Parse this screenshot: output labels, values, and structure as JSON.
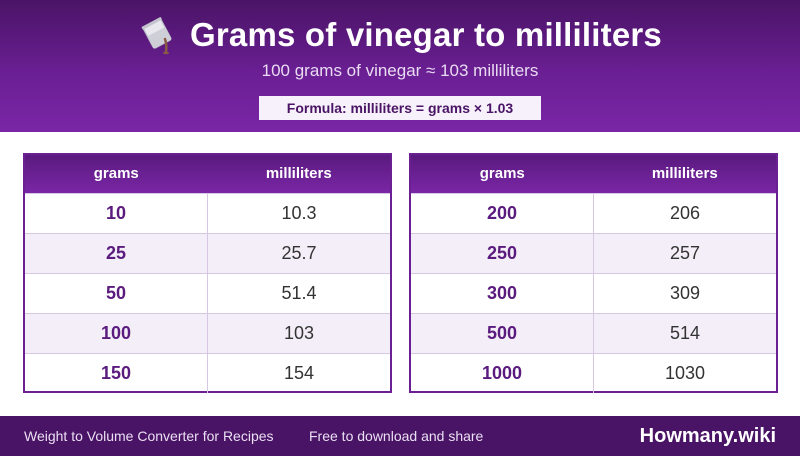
{
  "header": {
    "icon": "pouring-cup-icon",
    "title": "Grams of vinegar to milliliters",
    "subtitle": "100 grams of vinegar ≈ 103 milliliters",
    "formula": "Formula: milliliters = grams × 1.03"
  },
  "tables": [
    {
      "headers": [
        "grams",
        "milliliters"
      ],
      "rows": [
        {
          "grams": "10",
          "ml": "10.3"
        },
        {
          "grams": "25",
          "ml": "25.7"
        },
        {
          "grams": "50",
          "ml": "51.4"
        },
        {
          "grams": "100",
          "ml": "103"
        },
        {
          "grams": "150",
          "ml": "154"
        }
      ]
    },
    {
      "headers": [
        "grams",
        "milliliters"
      ],
      "rows": [
        {
          "grams": "200",
          "ml": "206"
        },
        {
          "grams": "250",
          "ml": "257"
        },
        {
          "grams": "300",
          "ml": "309"
        },
        {
          "grams": "500",
          "ml": "514"
        },
        {
          "grams": "1000",
          "ml": "1030"
        }
      ]
    }
  ],
  "footer": {
    "left": "Weight to Volume Converter for Recipes",
    "middle": "Free to download and share",
    "brand": "Howmany.wiki"
  },
  "colors": {
    "accent": "#6a1f93",
    "header_dark": "#4a1466",
    "row_alt": "#f3eef8"
  }
}
